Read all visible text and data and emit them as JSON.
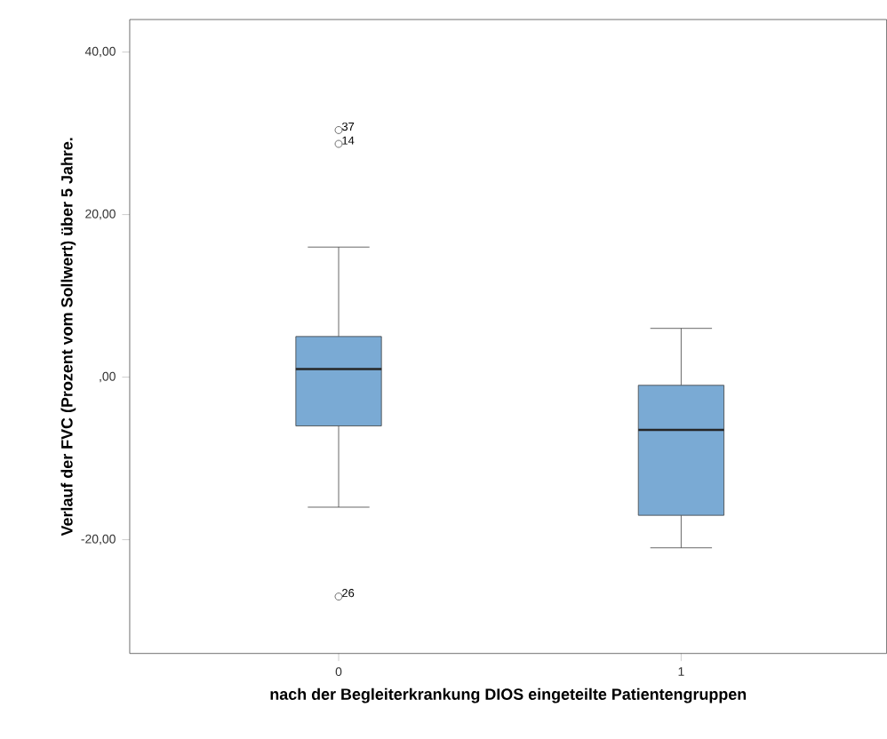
{
  "chart_data": {
    "type": "box",
    "xlabel": "nach der Begleiterkrankung DIOS eingeteilte Patientengruppen",
    "ylabel": "Verlauf der FVC (Prozent vom Sollwert) über 5 Jahre.",
    "categories": [
      "0",
      "1"
    ],
    "color": "#7aaad4",
    "boxes": [
      {
        "low": -16,
        "q1": -6,
        "median": 1,
        "q3": 5,
        "high": 16,
        "outliers": [
          30.4,
          28.7,
          -27
        ]
      },
      {
        "low": -21,
        "q1": -17,
        "median": -6.5,
        "q3": -1,
        "high": 6
      }
    ],
    "ylim": [
      -34,
      44
    ],
    "yticks": [
      {
        "value": -20,
        "label": "-20,00"
      },
      {
        "value": 0,
        "label": ",00"
      },
      {
        "value": 20,
        "label": "20,00"
      },
      {
        "value": 40,
        "label": "40,00"
      }
    ],
    "annotations": [
      "37",
      "14",
      "26"
    ],
    "grid": false,
    "marker": "circle"
  }
}
